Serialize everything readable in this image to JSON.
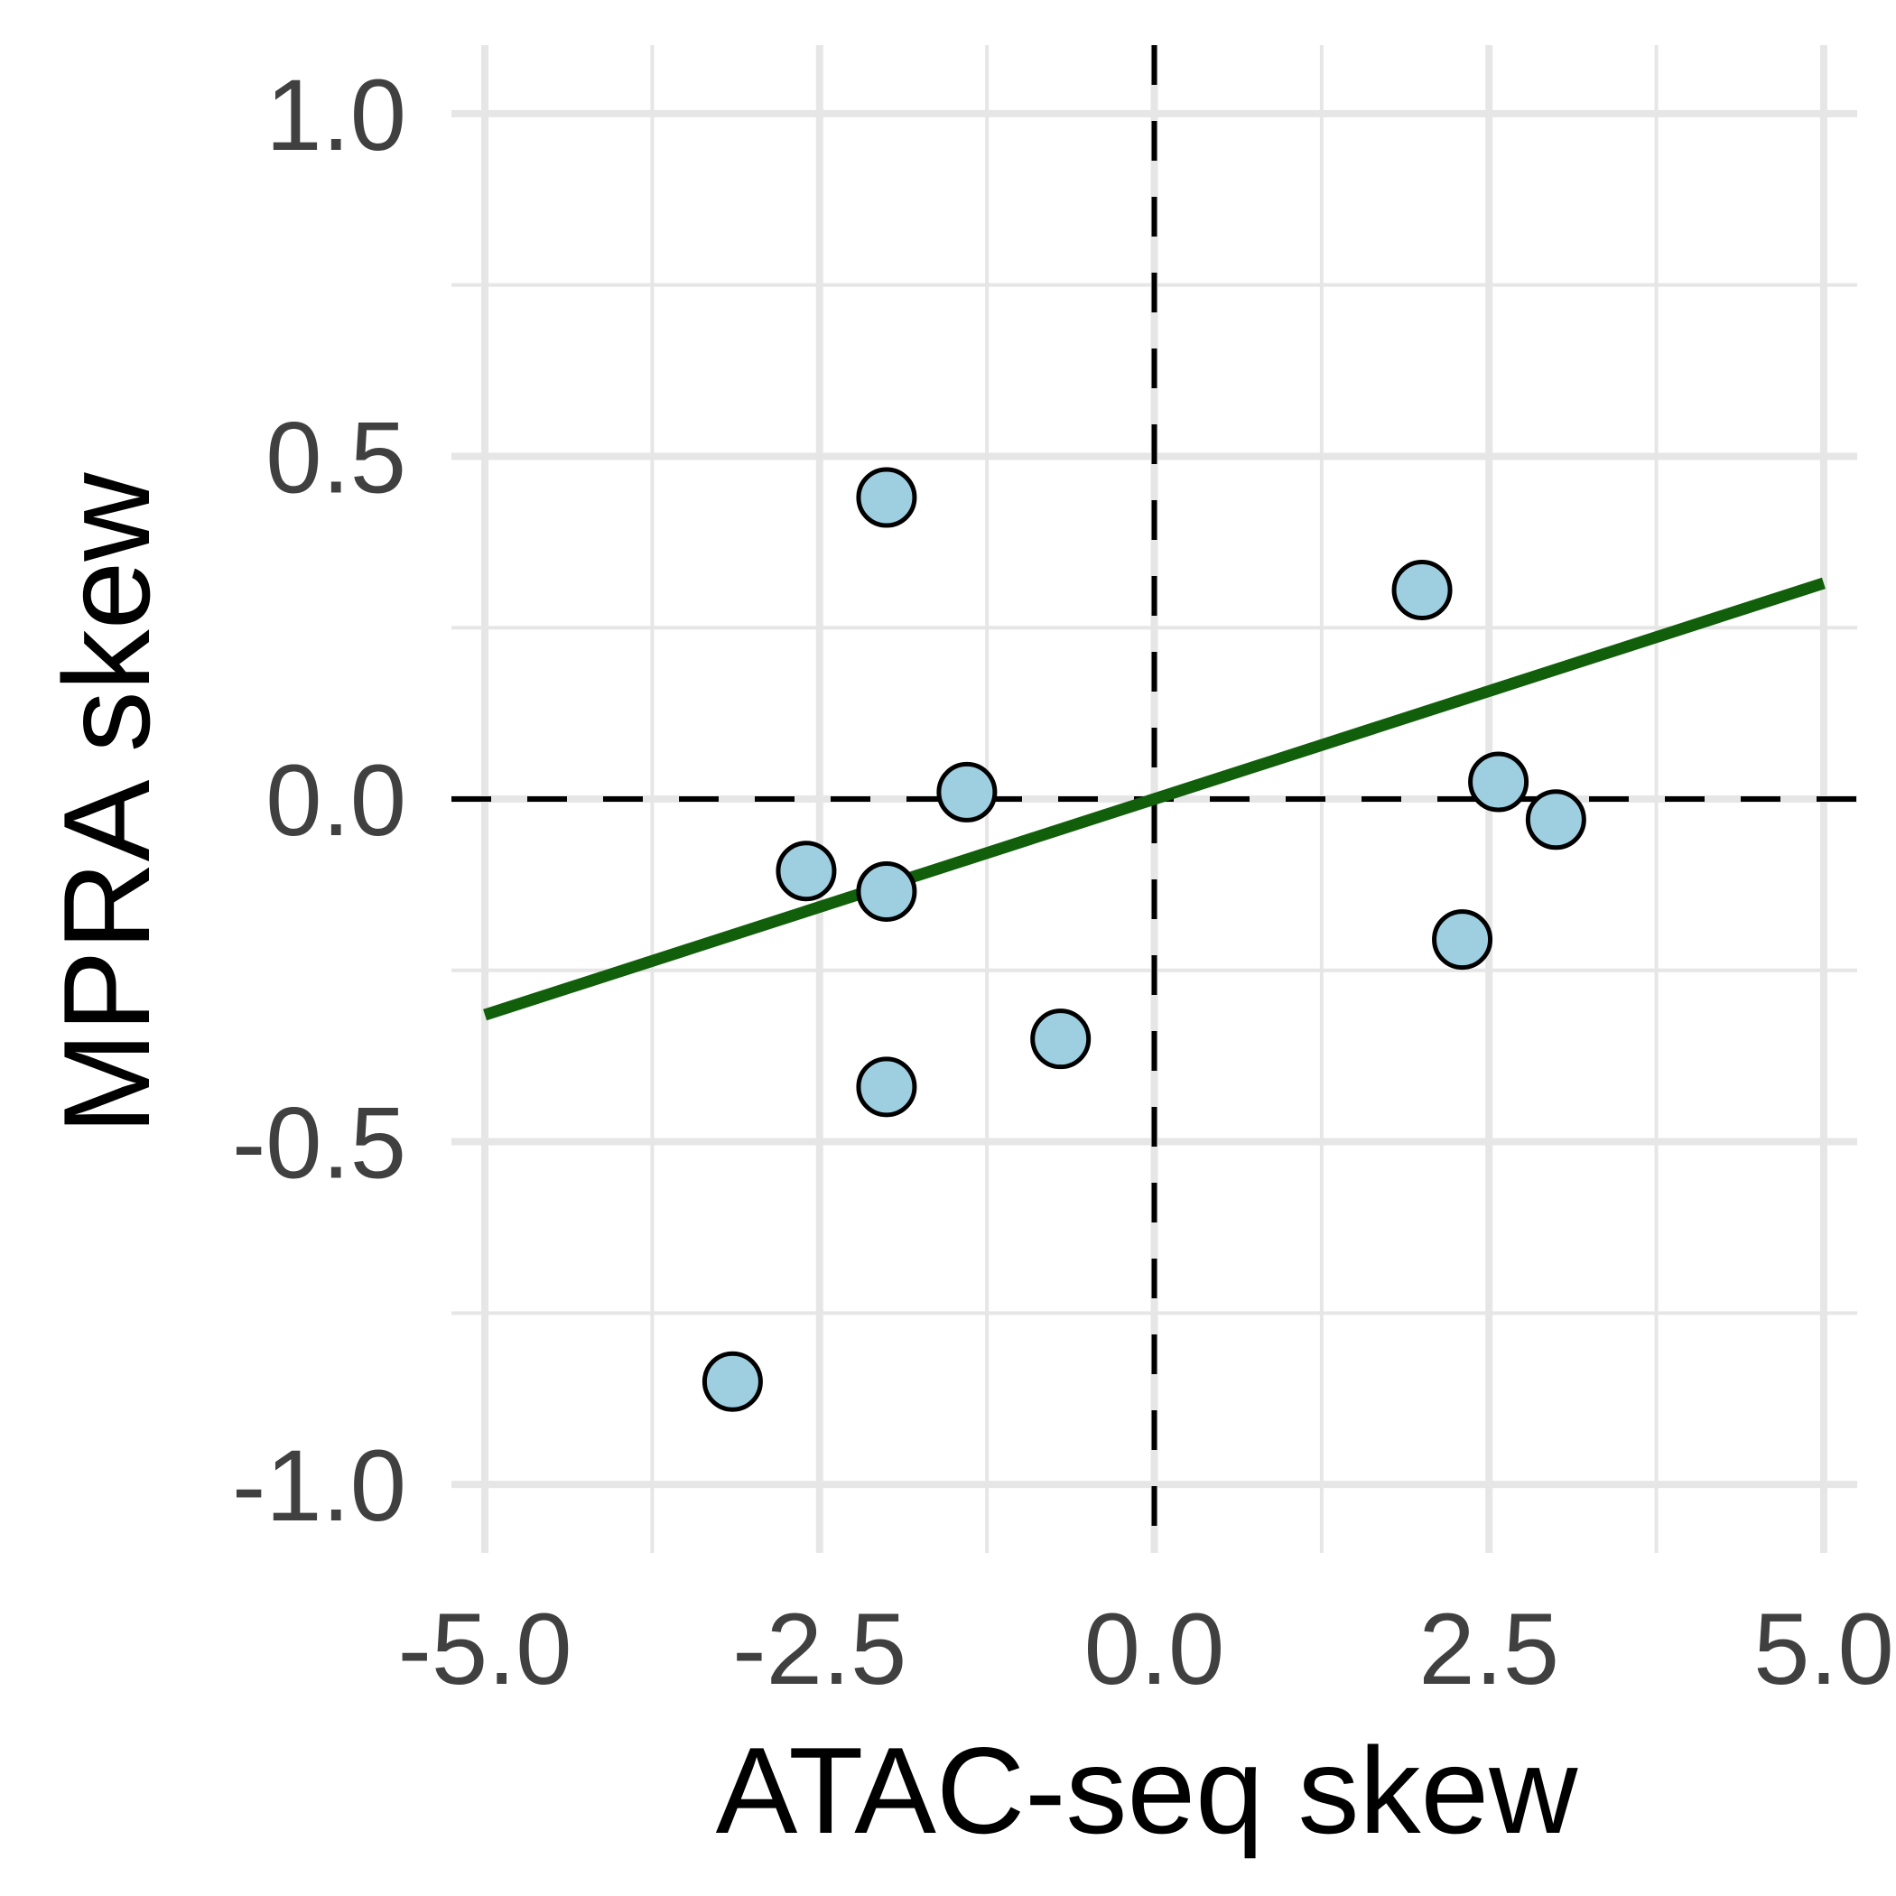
{
  "chart_data": {
    "type": "scatter",
    "xlabel": "ATAC-seq skew",
    "ylabel": "MPRA skew",
    "xlim": [
      -5.25,
      5.25
    ],
    "ylim": [
      -1.1,
      1.1
    ],
    "x_ticks": [
      "-5.0",
      "-2.5",
      "0.0",
      "2.5",
      "5.0"
    ],
    "x_tick_values": [
      -5.0,
      -2.5,
      0.0,
      2.5,
      5.0
    ],
    "y_ticks": [
      "-1.0",
      "-0.5",
      "0.0",
      "0.5",
      "1.0"
    ],
    "y_tick_values": [
      -1.0,
      -0.5,
      0.0,
      0.5,
      1.0
    ],
    "grid": true,
    "reference_lines": {
      "x": 0,
      "y": 0,
      "style": "dashed"
    },
    "points": [
      {
        "x": -2.0,
        "y": 0.44
      },
      {
        "x": 2.0,
        "y": 0.305
      },
      {
        "x": -1.4,
        "y": 0.01
      },
      {
        "x": -2.6,
        "y": -0.105
      },
      {
        "x": -2.0,
        "y": -0.135
      },
      {
        "x": -0.7,
        "y": -0.35
      },
      {
        "x": -2.0,
        "y": -0.42
      },
      {
        "x": -3.15,
        "y": -0.85
      },
      {
        "x": 2.57,
        "y": 0.025
      },
      {
        "x": 3.0,
        "y": -0.03
      },
      {
        "x": 2.3,
        "y": -0.205
      }
    ],
    "trend_line": {
      "x": [
        -5.0,
        5.0
      ],
      "y": [
        -0.315,
        0.315
      ]
    },
    "colors": {
      "point_fill": "#9ecfe1",
      "point_stroke": "#000000",
      "trend_line": "#115e0b",
      "grid": "#e6e6e6",
      "reference": "#000000"
    }
  }
}
